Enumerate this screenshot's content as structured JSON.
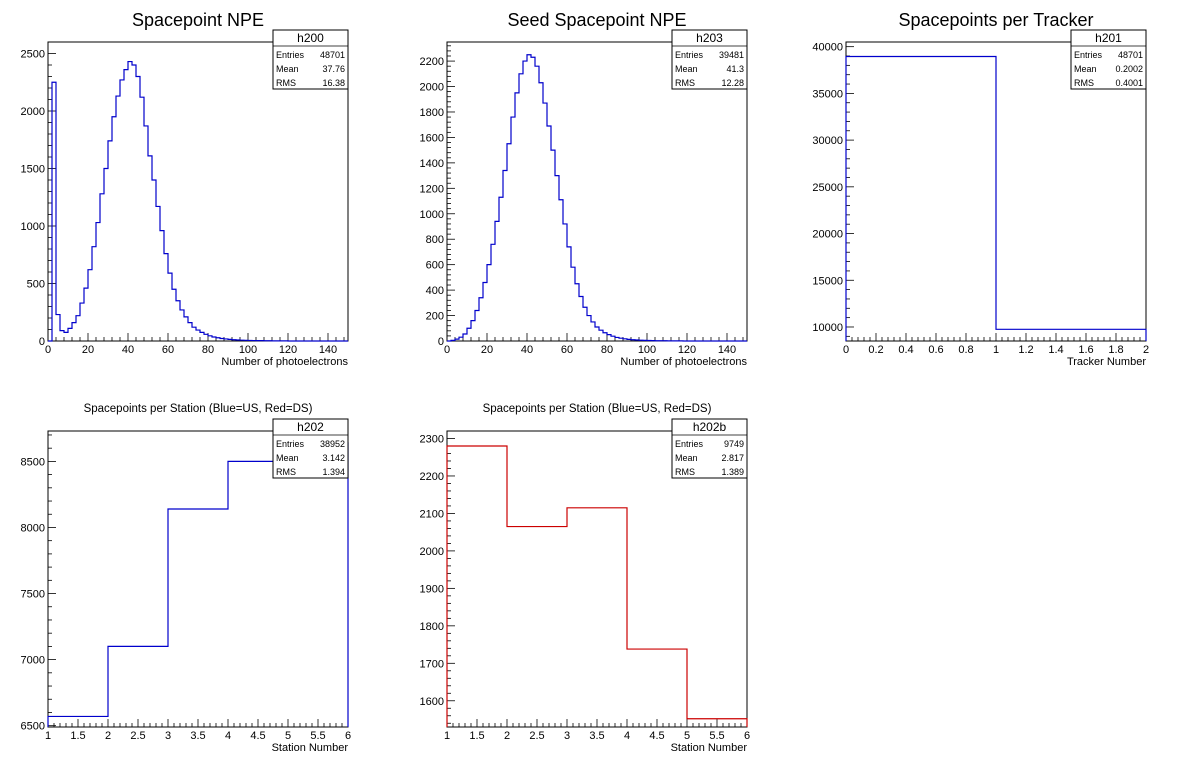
{
  "chart_data": [
    {
      "type": "histogram",
      "title": "Spacepoint NPE",
      "xlabel": "Number of photoelectrons",
      "ylabel": "",
      "xlim": [
        0,
        150
      ],
      "ylim": [
        0,
        2600
      ],
      "xticks": [
        0,
        20,
        40,
        60,
        80,
        100,
        120,
        140
      ],
      "yticks": [
        0,
        500,
        1000,
        1500,
        2000,
        2500
      ],
      "bin_width": 2,
      "color": "#0000cc",
      "values": [
        0,
        2250,
        230,
        90,
        75,
        110,
        160,
        220,
        330,
        460,
        620,
        820,
        1030,
        1280,
        1500,
        1740,
        1950,
        2130,
        2270,
        2360,
        2430,
        2400,
        2300,
        2120,
        1870,
        1610,
        1400,
        1170,
        960,
        760,
        590,
        450,
        350,
        270,
        210,
        160,
        120,
        95,
        75,
        58,
        45,
        35,
        28,
        22,
        18,
        14,
        11,
        9,
        7,
        6,
        5,
        4,
        3,
        3,
        2,
        2,
        1,
        1,
        1,
        1,
        0,
        0,
        0,
        0,
        0,
        0,
        0,
        0,
        0,
        0,
        0,
        0,
        0,
        0,
        0
      ],
      "stats": {
        "name": "h200",
        "entries": "48701",
        "mean": "37.76",
        "rms": "16.38"
      }
    },
    {
      "type": "histogram",
      "title": "Seed Spacepoint NPE",
      "xlabel": "Number of photoelectrons",
      "ylabel": "",
      "xlim": [
        0,
        150
      ],
      "ylim": [
        0,
        2350
      ],
      "xticks": [
        0,
        20,
        40,
        60,
        80,
        100,
        120,
        140
      ],
      "yticks": [
        0,
        200,
        400,
        600,
        800,
        1000,
        1200,
        1400,
        1600,
        1800,
        2000,
        2200
      ],
      "bin_width": 2,
      "color": "#0000cc",
      "values": [
        0,
        5,
        15,
        30,
        55,
        100,
        160,
        240,
        340,
        460,
        600,
        760,
        940,
        1130,
        1340,
        1550,
        1760,
        1950,
        2100,
        2200,
        2250,
        2230,
        2160,
        2030,
        1870,
        1690,
        1500,
        1300,
        1110,
        920,
        740,
        580,
        450,
        350,
        265,
        200,
        150,
        110,
        85,
        65,
        50,
        38,
        28,
        22,
        17,
        13,
        10,
        8,
        6,
        5,
        4,
        3,
        2,
        2,
        2,
        1,
        1,
        1,
        1,
        0,
        0,
        0,
        0,
        0,
        0,
        0,
        0,
        0,
        0,
        0,
        0,
        0,
        0,
        0,
        0
      ],
      "stats": {
        "name": "h203",
        "entries": "39481",
        "mean": "41.3",
        "rms": "12.28"
      }
    },
    {
      "type": "histogram",
      "title": "Spacepoints per Tracker",
      "xlabel": "Tracker Number",
      "ylabel": "",
      "xlim": [
        0,
        2
      ],
      "ylim": [
        8500,
        40500
      ],
      "xticks": [
        0,
        0.2,
        0.4,
        0.6,
        0.8,
        1,
        1.2,
        1.4,
        1.6,
        1.8,
        2
      ],
      "yticks": [
        10000,
        15000,
        20000,
        25000,
        30000,
        35000,
        40000
      ],
      "bin_edges": [
        0,
        1,
        2
      ],
      "values": [
        38952,
        9749
      ],
      "color": "#0000cc",
      "stats": {
        "name": "h201",
        "entries": "48701",
        "mean": "0.2002",
        "rms": "0.4001"
      }
    },
    {
      "type": "histogram",
      "title": "Spacepoints per Station (Blue=US, Red=DS)",
      "xlabel": "Station Number",
      "ylabel": "",
      "xlim": [
        1,
        6
      ],
      "ylim": [
        6490,
        8730
      ],
      "xticks": [
        1,
        1.5,
        2,
        2.5,
        3,
        3.5,
        4,
        4.5,
        5,
        5.5,
        6
      ],
      "yticks": [
        6500,
        7000,
        7500,
        8000,
        8500
      ],
      "bin_edges": [
        1,
        2,
        3,
        4,
        5,
        6
      ],
      "values": [
        6570,
        7100,
        8140,
        8500,
        8640
      ],
      "color": "#0000cc",
      "stats": {
        "name": "h202",
        "entries": "38952",
        "mean": "3.142",
        "rms": "1.394"
      }
    },
    {
      "type": "histogram",
      "title": "Spacepoints per Station (Blue=US, Red=DS)",
      "xlabel": "Station Number",
      "ylabel": "",
      "xlim": [
        1,
        6
      ],
      "ylim": [
        1530,
        2320
      ],
      "xticks": [
        1,
        1.5,
        2,
        2.5,
        3,
        3.5,
        4,
        4.5,
        5,
        5.5,
        6
      ],
      "yticks": [
        1600,
        1700,
        1800,
        1900,
        2000,
        2100,
        2200,
        2300
      ],
      "bin_edges": [
        1,
        2,
        3,
        4,
        5,
        6
      ],
      "values": [
        2280,
        2065,
        2115,
        1738,
        1552
      ],
      "color": "#cc0000",
      "stats": {
        "name": "h202b",
        "entries": "9749",
        "mean": "2.817",
        "rms": "1.389"
      }
    }
  ],
  "stats_labels": {
    "entries": "Entries",
    "mean": "Mean",
    "rms": "RMS"
  }
}
